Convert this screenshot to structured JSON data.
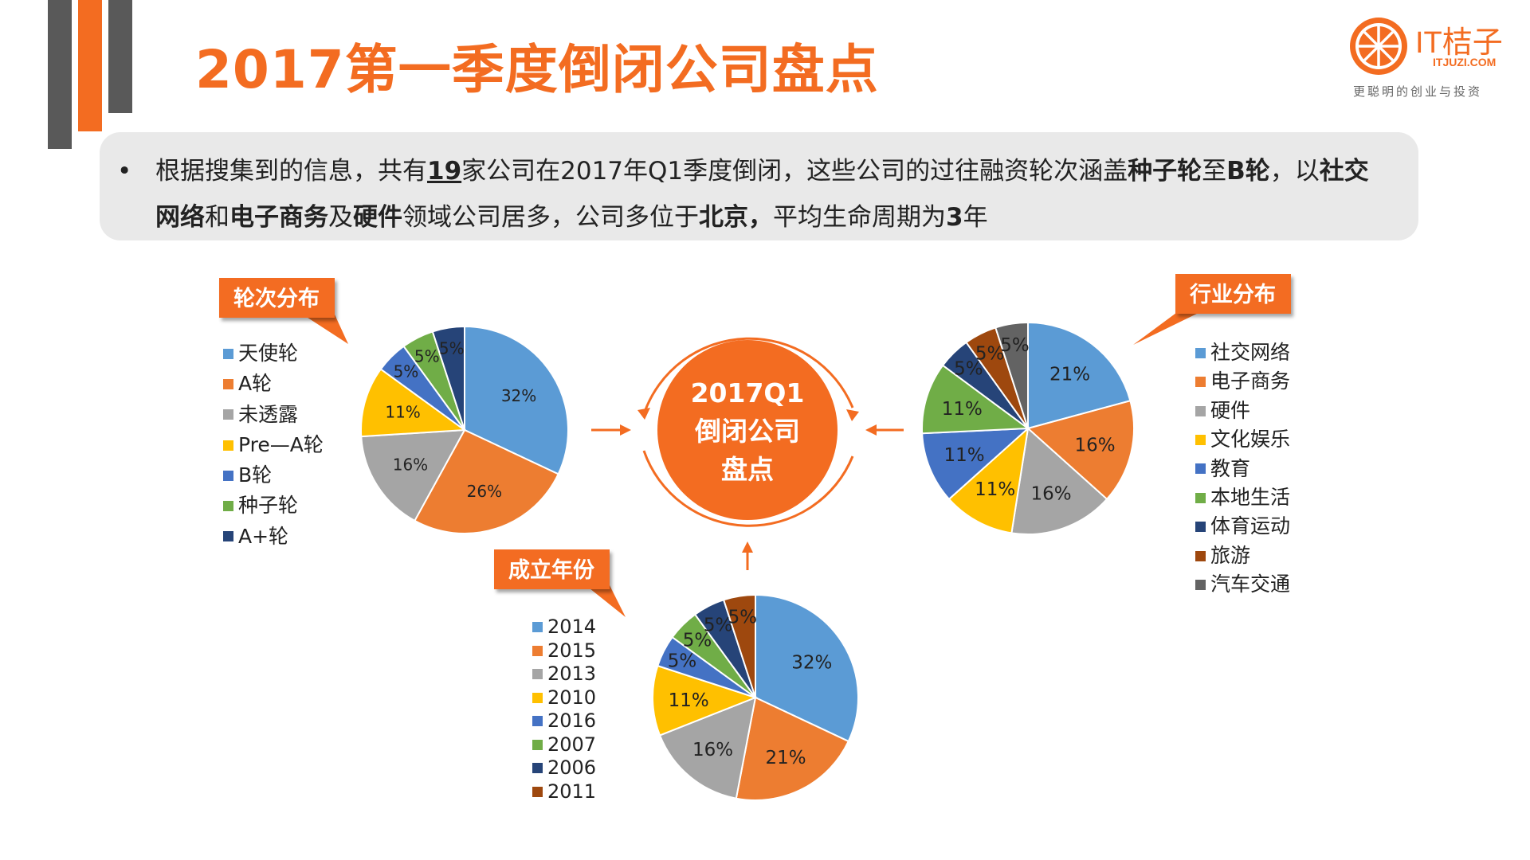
{
  "header": {
    "title": "2017第一季度倒闭公司盘点"
  },
  "logo": {
    "name": "IT桔子",
    "domain": "ITJUZI.COM",
    "slogan": "更聪明的创业与投资",
    "icon": "orange-slice-icon",
    "color": "#f36c21"
  },
  "summary": {
    "bullet": "•",
    "s1": "根据搜集到的信息，共有",
    "count": "19",
    "s2": "家公司在2017年Q1季度倒闭，这些公司的过往融资轮次涵盖",
    "round_from": "种子轮",
    "s3": "至",
    "round_to": "B轮",
    "s4": "，以",
    "industry1": "社交网络",
    "s5": "和",
    "industry2": "电子商务",
    "s6": "及",
    "industry3": "硬件",
    "s7": "领域公司居多，公司多位于",
    "city": "北京，",
    "s8": "平均生命周期为",
    "lifespan": "3",
    "s9": "年"
  },
  "center": {
    "line1": "2017Q1",
    "line2": "倒闭公司",
    "line3": "盘点"
  },
  "colors": {
    "accent": "#f36c21",
    "dark_bar": "#595959"
  },
  "chart_data": [
    {
      "type": "pie",
      "title": "轮次分布",
      "categories": [
        "天使轮",
        "A轮",
        "未透露",
        "Pre—A轮",
        "B轮",
        "种子轮",
        "A+轮"
      ],
      "values": [
        32,
        26,
        16,
        11,
        5,
        5,
        5
      ],
      "labels": [
        "32%",
        "26%",
        "16%",
        "11%",
        "5%",
        "5%",
        "5%"
      ],
      "colors": [
        "#5b9bd5",
        "#ed7d31",
        "#a5a5a5",
        "#ffc000",
        "#4472c4",
        "#70ad47",
        "#264478"
      ],
      "legend": "left"
    },
    {
      "type": "pie",
      "title": "行业分布",
      "categories": [
        "社交网络",
        "电子商务",
        "硬件",
        "文化娱乐",
        "教育",
        "本地生活",
        "体育运动",
        "旅游",
        "汽车交通"
      ],
      "values": [
        21,
        16,
        16,
        11,
        11,
        11,
        5,
        5,
        5
      ],
      "labels": [
        "21%",
        "16%",
        "16%",
        "11%",
        "11%",
        "11%",
        "5%",
        "5%",
        "5%"
      ],
      "colors": [
        "#5b9bd5",
        "#ed7d31",
        "#a5a5a5",
        "#ffc000",
        "#4472c4",
        "#70ad47",
        "#264478",
        "#9e480e",
        "#636363"
      ],
      "legend": "right"
    },
    {
      "type": "pie",
      "title": "成立年份",
      "categories": [
        "2014",
        "2015",
        "2013",
        "2010",
        "2016",
        "2007",
        "2006",
        "2011"
      ],
      "values": [
        32,
        21,
        16,
        11,
        5,
        5,
        5,
        5
      ],
      "labels": [
        "32%",
        "21%",
        "16%",
        "11%",
        "5%",
        "5%",
        "5%",
        "5%"
      ],
      "colors": [
        "#5b9bd5",
        "#ed7d31",
        "#a5a5a5",
        "#ffc000",
        "#4472c4",
        "#70ad47",
        "#264478",
        "#9e480e"
      ],
      "legend": "left"
    }
  ]
}
